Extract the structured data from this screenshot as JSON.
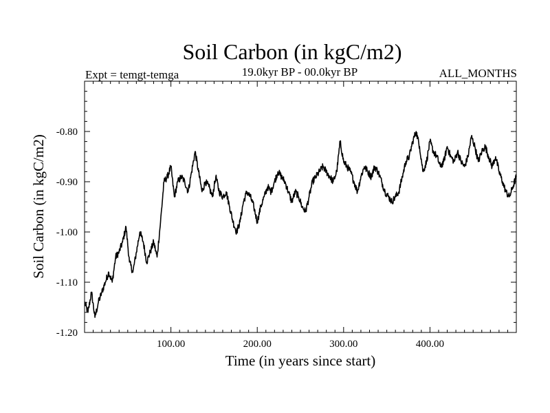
{
  "chart_data": {
    "type": "line",
    "title": "Soil Carbon (in kgC/m2)",
    "subtitle_left": "Expt = temgt-temga",
    "subtitle_center": "19.0kyr BP - 00.0kyr BP",
    "subtitle_right": "ALL_MONTHS",
    "xlabel": "Time (in years since start)",
    "ylabel": "Soil Carbon (in kgC/m2)",
    "xlim": [
      0,
      500
    ],
    "ylim": [
      -1.2,
      -0.7
    ],
    "xticks": [
      {
        "value": 100,
        "label": "100.00"
      },
      {
        "value": 200,
        "label": "200.00"
      },
      {
        "value": 300,
        "label": "300.00"
      },
      {
        "value": 400,
        "label": "400.00"
      }
    ],
    "yticks": [
      {
        "value": -0.8,
        "label": "-0.80"
      },
      {
        "value": -0.9,
        "label": "-0.90"
      },
      {
        "value": -1.0,
        "label": "-1.00"
      },
      {
        "value": -1.1,
        "label": "-1.10"
      },
      {
        "value": -1.2,
        "label": "-1.20"
      }
    ],
    "grid": false,
    "series": [
      {
        "name": "Soil Carbon",
        "color": "#000000",
        "x": [
          0,
          4,
          8,
          12,
          16,
          20,
          24,
          28,
          32,
          36,
          40,
          44,
          48,
          52,
          56,
          60,
          64,
          68,
          72,
          76,
          80,
          84,
          88,
          92,
          96,
          100,
          104,
          108,
          112,
          116,
          120,
          124,
          128,
          132,
          136,
          140,
          144,
          148,
          152,
          156,
          160,
          164,
          168,
          172,
          176,
          180,
          184,
          188,
          192,
          196,
          200,
          204,
          208,
          212,
          216,
          220,
          224,
          228,
          232,
          236,
          240,
          244,
          248,
          252,
          256,
          260,
          264,
          268,
          272,
          276,
          280,
          284,
          288,
          292,
          296,
          300,
          304,
          308,
          312,
          316,
          320,
          324,
          328,
          332,
          336,
          340,
          344,
          348,
          352,
          356,
          360,
          364,
          368,
          372,
          376,
          380,
          384,
          388,
          392,
          396,
          400,
          404,
          408,
          412,
          416,
          420,
          424,
          428,
          432,
          436,
          440,
          444,
          448,
          452,
          456,
          460,
          464,
          468,
          472,
          476,
          480,
          484,
          488,
          492,
          496,
          500
        ],
        "values": [
          -1.14,
          -1.16,
          -1.12,
          -1.17,
          -1.14,
          -1.12,
          -1.1,
          -1.08,
          -1.1,
          -1.05,
          -1.04,
          -1.02,
          -0.99,
          -1.06,
          -1.08,
          -1.04,
          -1.0,
          -1.02,
          -1.06,
          -1.04,
          -1.02,
          -1.05,
          -0.98,
          -0.9,
          -0.89,
          -0.87,
          -0.93,
          -0.9,
          -0.89,
          -0.9,
          -0.92,
          -0.88,
          -0.84,
          -0.88,
          -0.92,
          -0.9,
          -0.91,
          -0.93,
          -0.89,
          -0.92,
          -0.93,
          -0.92,
          -0.95,
          -0.98,
          -1.0,
          -0.98,
          -0.94,
          -0.92,
          -0.93,
          -0.95,
          -0.98,
          -0.95,
          -0.93,
          -0.91,
          -0.92,
          -0.9,
          -0.88,
          -0.89,
          -0.9,
          -0.92,
          -0.94,
          -0.92,
          -0.93,
          -0.95,
          -0.96,
          -0.93,
          -0.9,
          -0.89,
          -0.88,
          -0.87,
          -0.88,
          -0.89,
          -0.9,
          -0.88,
          -0.82,
          -0.86,
          -0.87,
          -0.88,
          -0.9,
          -0.92,
          -0.89,
          -0.87,
          -0.88,
          -0.89,
          -0.87,
          -0.88,
          -0.9,
          -0.92,
          -0.93,
          -0.94,
          -0.93,
          -0.92,
          -0.89,
          -0.86,
          -0.85,
          -0.82,
          -0.8,
          -0.83,
          -0.88,
          -0.86,
          -0.82,
          -0.84,
          -0.85,
          -0.87,
          -0.86,
          -0.83,
          -0.85,
          -0.86,
          -0.84,
          -0.86,
          -0.87,
          -0.85,
          -0.81,
          -0.83,
          -0.86,
          -0.84,
          -0.83,
          -0.85,
          -0.87,
          -0.85,
          -0.88,
          -0.9,
          -0.92,
          -0.93,
          -0.91,
          -0.89
        ]
      }
    ]
  }
}
